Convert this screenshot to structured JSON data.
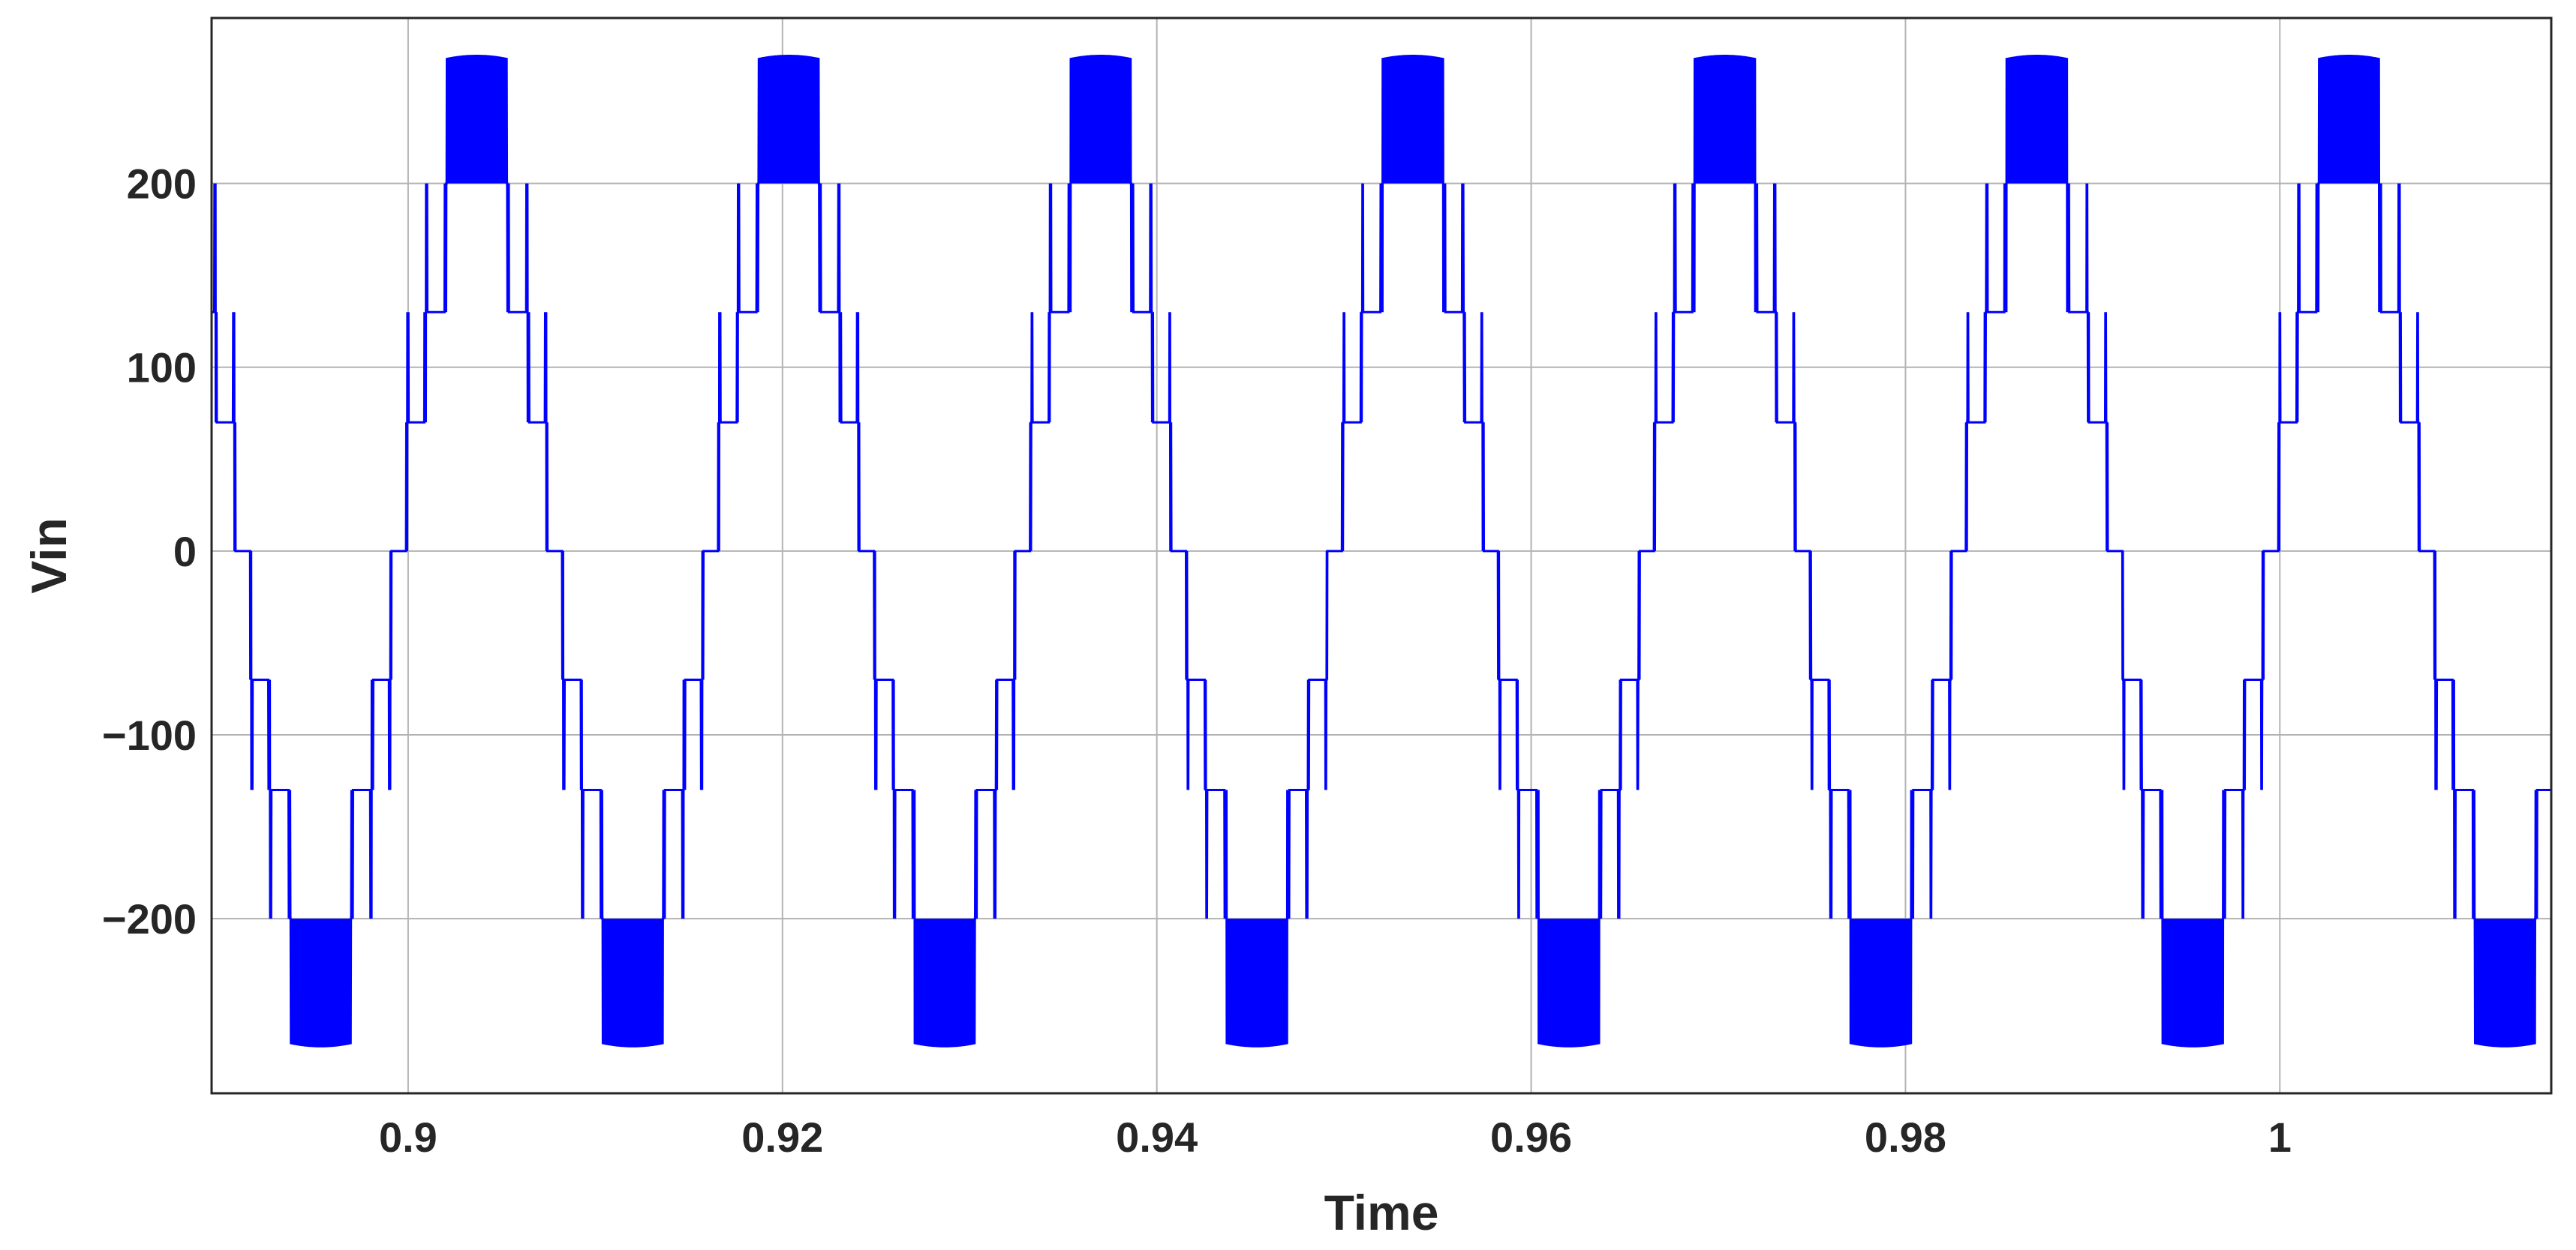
{
  "chart_data": {
    "type": "line",
    "title": "",
    "xlabel": "Time",
    "ylabel": "Vin",
    "xlim": [
      0.8895,
      1.0145
    ],
    "ylim": [
      -295,
      290
    ],
    "xticks": [
      0.9,
      0.92,
      0.94,
      0.96,
      0.98,
      1.0
    ],
    "xtick_labels": [
      "0.9",
      "0.92",
      "0.94",
      "0.96",
      "0.98",
      "1"
    ],
    "yticks": [
      -200,
      -100,
      0,
      100,
      200
    ],
    "ytick_labels": [
      "−200",
      "−100",
      "0",
      "100",
      "200"
    ],
    "grid": true,
    "series": [
      {
        "color": "#0000ff",
        "fundamental_period": 0.01667,
        "waveform": "multilevel staircase sine with PWM switching between adjacent levels",
        "levels": [
          -270,
          -200,
          -130,
          -70,
          0,
          70,
          130,
          200,
          270
        ],
        "peak_band": [
          200,
          275
        ],
        "trough_band": [
          -275,
          -200
        ]
      }
    ]
  }
}
